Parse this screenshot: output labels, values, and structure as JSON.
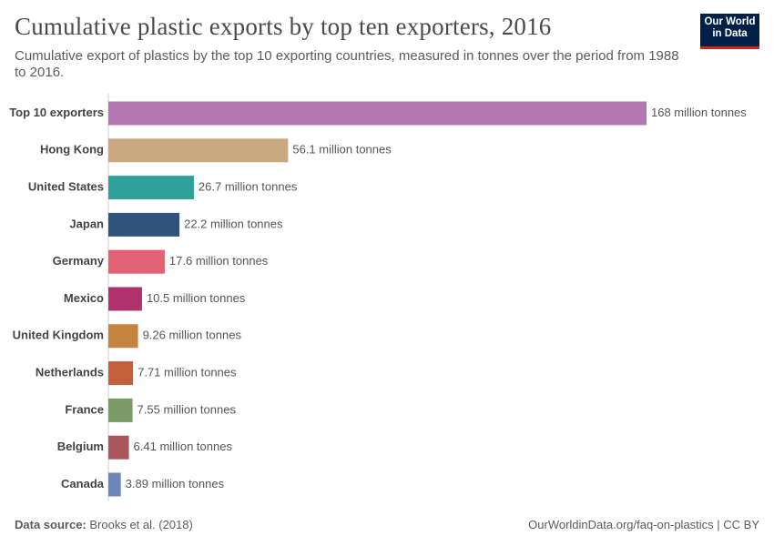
{
  "chart_data": {
    "type": "bar",
    "orientation": "horizontal",
    "title": "Cumulative plastic exports by top ten exporters, 2016",
    "subtitle": "Cumulative export of plastics by the top 10 exporting countries, measured in tonnes over the period from 1988 to 2016.",
    "categories": [
      "Top 10 exporters",
      "Hong Kong",
      "United States",
      "Japan",
      "Germany",
      "Mexico",
      "United Kingdom",
      "Netherlands",
      "France",
      "Belgium",
      "Canada"
    ],
    "values": [
      168,
      56.1,
      26.7,
      22.2,
      17.6,
      10.5,
      9.26,
      7.71,
      7.55,
      6.41,
      3.89
    ],
    "value_labels": [
      "168 million tonnes",
      "56.1 million tonnes",
      "26.7 million tonnes",
      "22.2 million tonnes",
      "17.6 million tonnes",
      "10.5 million tonnes",
      "9.26 million tonnes",
      "7.71 million tonnes",
      "7.55 million tonnes",
      "6.41 million tonnes",
      "3.89 million tonnes"
    ],
    "colors": [
      "#b577b1",
      "#c9a77f",
      "#2fa09a",
      "#2f537d",
      "#e06273",
      "#af326c",
      "#c4843f",
      "#c45f3c",
      "#789b67",
      "#a9575d",
      "#6b86b8"
    ],
    "source_label": "Data source:",
    "source": "Brooks et al. (2018)",
    "footer_right": "OurWorldinData.org/faq-on-plastics | CC BY",
    "logo": [
      "Our World",
      "in Data"
    ]
  }
}
